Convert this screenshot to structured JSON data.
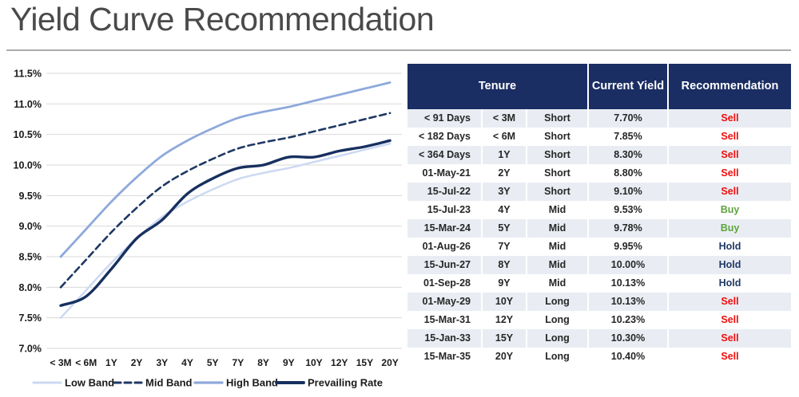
{
  "page": {
    "title": "Yield Curve Recommendation"
  },
  "chart_data": {
    "type": "line",
    "categories": [
      "< 3M",
      "< 6M",
      "1Y",
      "2Y",
      "3Y",
      "4Y",
      "5Y",
      "7Y",
      "8Y",
      "9Y",
      "10Y",
      "12Y",
      "15Y",
      "20Y"
    ],
    "series": [
      {
        "name": "Low Band",
        "values": [
          7.5,
          7.95,
          8.4,
          8.8,
          9.15,
          9.4,
          9.6,
          9.77,
          9.87,
          9.95,
          10.05,
          10.15,
          10.25,
          10.35
        ],
        "color": "#ccd9f2",
        "style": "solid",
        "width": 2.5
      },
      {
        "name": "Mid Band",
        "values": [
          8.0,
          8.45,
          8.9,
          9.3,
          9.65,
          9.9,
          10.1,
          10.27,
          10.37,
          10.45,
          10.55,
          10.65,
          10.75,
          10.85
        ],
        "color": "#1f3864",
        "style": "dashed",
        "width": 2.6
      },
      {
        "name": "High Band",
        "values": [
          8.5,
          8.95,
          9.4,
          9.8,
          10.15,
          10.4,
          10.6,
          10.77,
          10.87,
          10.95,
          11.05,
          11.15,
          11.25,
          11.35
        ],
        "color": "#8ea9db",
        "style": "solid",
        "width": 2.8
      },
      {
        "name": "Prevailing Rate",
        "values": [
          7.7,
          7.85,
          8.3,
          8.8,
          9.1,
          9.53,
          9.78,
          9.95,
          10.0,
          10.13,
          10.13,
          10.23,
          10.3,
          10.4
        ],
        "color": "#17305f",
        "style": "solid",
        "width": 3.4
      }
    ],
    "title": "",
    "xlabel": "",
    "ylabel": "",
    "ylim": [
      7.0,
      11.5
    ],
    "ytick_step": 0.5,
    "ytick_format": "percent",
    "grid": "horizontal",
    "legend_position": "bottom",
    "gridline_color": "#d9d9d9"
  },
  "table": {
    "headers": {
      "tenure": "Tenure",
      "current_yield": "Current Yield",
      "recommendation": "Recommendation"
    },
    "rows": [
      {
        "date": "< 91 Days",
        "tenor": "< 3M",
        "bucket": "Short",
        "yield": "7.70%",
        "rec": "Sell"
      },
      {
        "date": "< 182 Days",
        "tenor": "< 6M",
        "bucket": "Short",
        "yield": "7.85%",
        "rec": "Sell"
      },
      {
        "date": "< 364 Days",
        "tenor": "1Y",
        "bucket": "Short",
        "yield": "8.30%",
        "rec": "Sell"
      },
      {
        "date": "01-May-21",
        "tenor": "2Y",
        "bucket": "Short",
        "yield": "8.80%",
        "rec": "Sell"
      },
      {
        "date": "15-Jul-22",
        "tenor": "3Y",
        "bucket": "Short",
        "yield": "9.10%",
        "rec": "Sell"
      },
      {
        "date": "15-Jul-23",
        "tenor": "4Y",
        "bucket": "Mid",
        "yield": "9.53%",
        "rec": "Buy"
      },
      {
        "date": "15-Mar-24",
        "tenor": "5Y",
        "bucket": "Mid",
        "yield": "9.78%",
        "rec": "Buy"
      },
      {
        "date": "01-Aug-26",
        "tenor": "7Y",
        "bucket": "Mid",
        "yield": "9.95%",
        "rec": "Hold"
      },
      {
        "date": "15-Jun-27",
        "tenor": "8Y",
        "bucket": "Mid",
        "yield": "10.00%",
        "rec": "Hold"
      },
      {
        "date": "01-Sep-28",
        "tenor": "9Y",
        "bucket": "Mid",
        "yield": "10.13%",
        "rec": "Hold"
      },
      {
        "date": "01-May-29",
        "tenor": "10Y",
        "bucket": "Long",
        "yield": "10.13%",
        "rec": "Sell"
      },
      {
        "date": "15-Mar-31",
        "tenor": "12Y",
        "bucket": "Long",
        "yield": "10.23%",
        "rec": "Sell"
      },
      {
        "date": "15-Jan-33",
        "tenor": "15Y",
        "bucket": "Long",
        "yield": "10.30%",
        "rec": "Sell"
      },
      {
        "date": "15-Mar-35",
        "tenor": "20Y",
        "bucket": "Long",
        "yield": "10.40%",
        "rec": "Sell"
      }
    ],
    "rec_colors": {
      "Sell": "#f20d0d",
      "Buy": "#5ea33d",
      "Hold": "#1f3864"
    },
    "colors": {
      "header_bg": "#1b2e63",
      "header_text": "#ffffff",
      "stripe": "#e9edf3"
    }
  }
}
